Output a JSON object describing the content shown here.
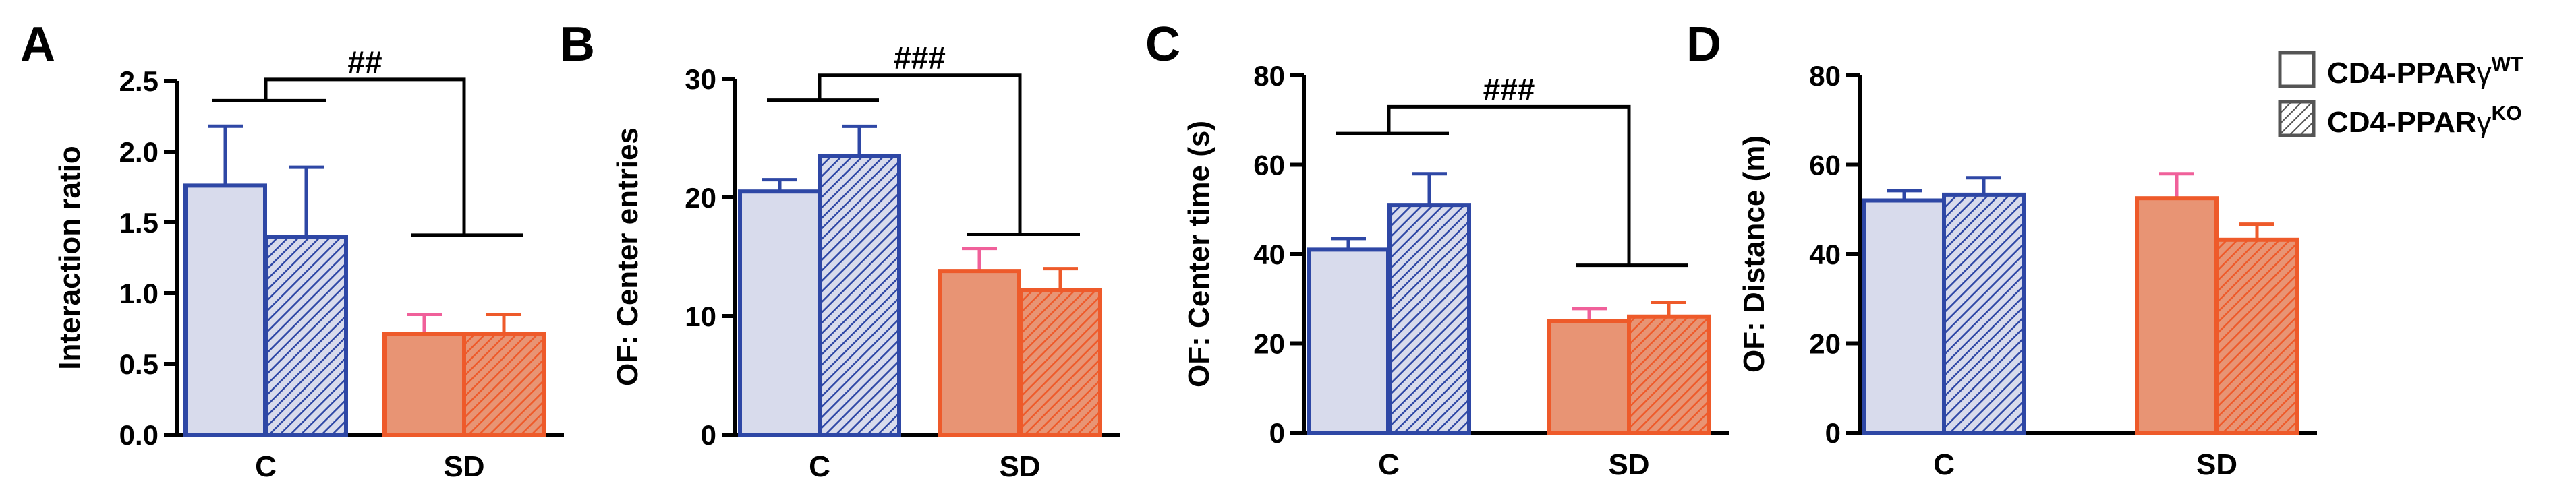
{
  "legend": {
    "wt": {
      "prefix": "CD4-PPAR",
      "greek": "γ",
      "sup": "WT"
    },
    "ko": {
      "prefix": "CD4-PPAR",
      "greek": "γ",
      "sup": "KO"
    }
  },
  "colors": {
    "c_fill": "#d8dbec",
    "c_edge": "#2e47a5",
    "c_err": "#2e47a5",
    "sd_fill": "#e89474",
    "sd_edge": "#ee5a2a",
    "sd_err_wt": "#f0609a",
    "sd_err_ko": "#ee5a2a",
    "axis": "#000000"
  },
  "chart_data": [
    {
      "type": "bar",
      "panel_label": "A",
      "ylabel": "Interaction ratio",
      "ylim": [
        0,
        2.5
      ],
      "yticks": [
        "0.0",
        "0.5",
        "1.0",
        "1.5",
        "2.0",
        "2.5"
      ],
      "categories": [
        "C",
        "SD"
      ],
      "series": [
        {
          "name": "CD4-PPARγWT",
          "values": [
            1.76,
            0.71
          ],
          "errors": [
            0.42,
            0.14
          ]
        },
        {
          "name": "CD4-PPARγKO",
          "values": [
            1.4,
            0.71
          ],
          "errors": [
            0.49,
            0.14
          ]
        }
      ],
      "annotation": {
        "text": "##",
        "left_top": 2.36,
        "right_top": 1.41,
        "top": 2.51
      }
    },
    {
      "type": "bar",
      "panel_label": "B",
      "ylabel": "OF: Center entries",
      "ylim": [
        0,
        30
      ],
      "yticks": [
        "0",
        "10",
        "20",
        "30"
      ],
      "categories": [
        "C",
        "SD"
      ],
      "series": [
        {
          "name": "CD4-PPARγWT",
          "values": [
            20.5,
            13.8
          ],
          "errors": [
            1.0,
            1.9
          ]
        },
        {
          "name": "CD4-PPARγKO",
          "values": [
            23.5,
            12.2
          ],
          "errors": [
            2.5,
            1.8
          ]
        }
      ],
      "annotation": {
        "text": "###",
        "left_top": 28.2,
        "right_top": 16.9,
        "top": 30.3
      }
    },
    {
      "type": "bar",
      "panel_label": "C",
      "ylabel": "OF: Center time (s)",
      "ylim": [
        0,
        80
      ],
      "yticks": [
        "0",
        "20",
        "40",
        "60",
        "80"
      ],
      "categories": [
        "C",
        "SD"
      ],
      "series": [
        {
          "name": "CD4-PPARγWT",
          "values": [
            41,
            25
          ],
          "errors": [
            2.5,
            2.8
          ]
        },
        {
          "name": "CD4-PPARγKO",
          "values": [
            51,
            26
          ],
          "errors": [
            7,
            3.2
          ]
        }
      ],
      "annotation": {
        "text": "###",
        "left_top": 67,
        "right_top": 37.5,
        "top": 73
      }
    },
    {
      "type": "bar",
      "panel_label": "D",
      "ylabel": "OF: Distance (m)",
      "ylim": [
        0,
        80
      ],
      "yticks": [
        "0",
        "20",
        "40",
        "60",
        "80"
      ],
      "categories": [
        "C",
        "SD"
      ],
      "series": [
        {
          "name": "CD4-PPARγWT",
          "values": [
            52,
            52.5
          ],
          "errors": [
            2.2,
            5.5
          ]
        },
        {
          "name": "CD4-PPARγKO",
          "values": [
            53.3,
            43.2
          ],
          "errors": [
            3.8,
            3.5
          ]
        }
      ]
    }
  ]
}
